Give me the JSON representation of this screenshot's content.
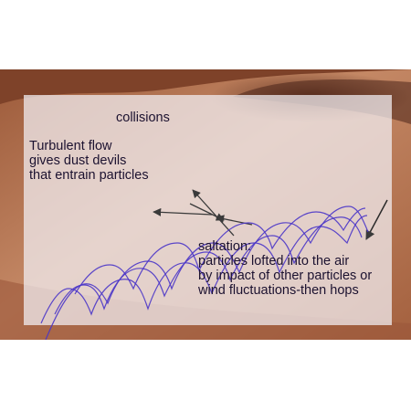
{
  "labels": {
    "collisions": "collisions",
    "turbulent_lines": [
      "Turbulent flow",
      "gives dust devils",
      "that entrain particles"
    ],
    "saltation_lines": [
      "saltation:",
      "particles lofted into the air",
      "by impact of other particles or",
      "wind fluctuations-then hops"
    ]
  },
  "colors": {
    "page_background": "#ffffff",
    "terrain_dark": "#8a4a2e",
    "terrain_light": "#c58a63",
    "overlay": "#f2eef2",
    "trajectory": "#4a35c8",
    "arrow": "#3a3a3a",
    "text": "#1c1230"
  }
}
